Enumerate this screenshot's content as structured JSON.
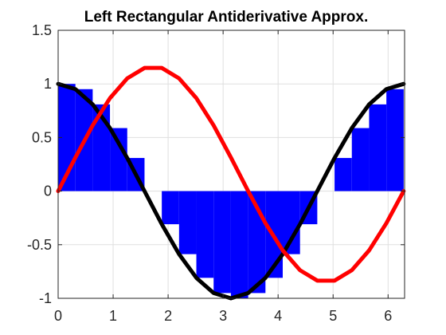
{
  "chart_data": {
    "type": "line",
    "title": "Left Rectangular Antiderivative Approx.",
    "xlabel": "",
    "ylabel": "",
    "xlim": [
      0,
      6.3
    ],
    "ylim": [
      -1,
      1.5
    ],
    "x_ticks": [
      "0",
      "1",
      "2",
      "3",
      "4",
      "5",
      "6"
    ],
    "x_tick_values": [
      0,
      1,
      2,
      3,
      4,
      5,
      6
    ],
    "y_ticks": [
      "-1",
      "-0.5",
      "0",
      "0.5",
      "1",
      "1.5"
    ],
    "y_tick_values": [
      -1,
      -0.5,
      0,
      0.5,
      1,
      1.5
    ],
    "grid": true,
    "legend": "none",
    "rectangles": {
      "name": "",
      "color": "#0000ff",
      "width": 0.3142,
      "x_left": [
        0,
        0.3142,
        0.6283,
        0.9425,
        1.2566,
        1.5708,
        1.885,
        2.1991,
        2.5133,
        2.8274,
        3.1416,
        3.4558,
        3.7699,
        4.0841,
        4.3982,
        4.7124,
        5.0265,
        5.3407,
        5.6549,
        5.969
      ],
      "heights": [
        1,
        0.951,
        0.809,
        0.588,
        0.309,
        0,
        -0.309,
        -0.588,
        -0.809,
        -0.951,
        -1,
        -0.951,
        -0.809,
        -0.588,
        -0.309,
        0,
        0.309,
        0.588,
        0.809,
        0.951
      ]
    },
    "series": [
      {
        "name": "",
        "color": "#000000",
        "x": [
          0,
          0.3142,
          0.6283,
          0.9425,
          1.2566,
          1.5708,
          1.885,
          2.1991,
          2.5133,
          2.8274,
          3.1416,
          3.4558,
          3.7699,
          4.0841,
          4.3982,
          4.7124,
          5.0265,
          5.3407,
          5.6549,
          5.969,
          6.2832
        ],
        "y": [
          1,
          0.951,
          0.809,
          0.588,
          0.309,
          0,
          -0.309,
          -0.588,
          -0.809,
          -0.951,
          -1,
          -0.951,
          -0.809,
          -0.588,
          -0.309,
          0,
          0.309,
          0.588,
          0.809,
          0.951,
          1
        ]
      },
      {
        "name": "",
        "color": "#ff0000",
        "x": [
          0,
          0.3142,
          0.6283,
          0.9425,
          1.2566,
          1.5708,
          1.885,
          2.1991,
          2.5133,
          2.8274,
          3.1416,
          3.4558,
          3.7699,
          4.0841,
          4.3982,
          4.7124,
          5.0265,
          5.3407,
          5.6549,
          5.969,
          6.2832
        ],
        "y": [
          0,
          0.314,
          0.613,
          0.867,
          1.052,
          1.149,
          1.149,
          1.052,
          0.867,
          0.613,
          0.314,
          0,
          -0.299,
          -0.553,
          -0.738,
          -0.835,
          -0.835,
          -0.738,
          -0.553,
          -0.299,
          0
        ]
      }
    ]
  }
}
